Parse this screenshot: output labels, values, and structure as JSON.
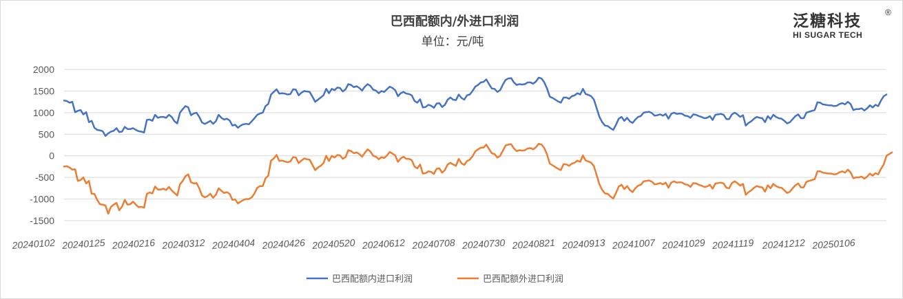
{
  "chart_data": {
    "type": "line",
    "title": "巴西配额内/外进口利润",
    "subtitle": "单位：元/吨",
    "ylim": [
      -1500,
      2000
    ],
    "yticks": [
      2000,
      1500,
      1000,
      500,
      0,
      -500,
      -1000,
      -1500
    ],
    "x_tick_labels": [
      "20240102",
      "20240125",
      "20240216",
      "20240312",
      "20240404",
      "20240426",
      "20240520",
      "20240612",
      "20240708",
      "20240730",
      "20240821",
      "20240913",
      "20241007",
      "20241029",
      "20241119",
      "20241212",
      "20250106"
    ],
    "grid": true,
    "legend_position": "bottom",
    "series": [
      {
        "name": "巴西配额内进口利润",
        "color": "#4472c4",
        "values": [
          1280,
          1270,
          1230,
          1250,
          1010,
          1040,
          1060,
          960,
          1010,
          780,
          810,
          650,
          600,
          590,
          570,
          460,
          520,
          560,
          580,
          640,
          550,
          560,
          670,
          620,
          620,
          640,
          600,
          570,
          560,
          540,
          830,
          840,
          810,
          950,
          880,
          900,
          900,
          880,
          950,
          900,
          800,
          750,
          1000,
          1080,
          1150,
          1120,
          940,
          980,
          1000,
          900,
          770,
          740,
          770,
          810,
          740,
          800,
          950,
          880,
          840,
          860,
          820,
          700,
          720,
          650,
          700,
          730,
          740,
          730,
          800,
          870,
          950,
          980,
          1000,
          1150,
          1200,
          1420,
          1480,
          1540,
          1440,
          1450,
          1440,
          1420,
          1430,
          1540,
          1530,
          1400,
          1460,
          1500,
          1490,
          1480,
          1370,
          1250,
          1300,
          1350,
          1400,
          1550,
          1450,
          1550,
          1520,
          1580,
          1570,
          1490,
          1540,
          1660,
          1640,
          1590,
          1610,
          1570,
          1510,
          1600,
          1660,
          1620,
          1530,
          1510,
          1450,
          1500,
          1480,
          1540,
          1600,
          1570,
          1520,
          1380,
          1450,
          1480,
          1440,
          1430,
          1400,
          1270,
          1230,
          1310,
          1120,
          1130,
          1180,
          1160,
          1110,
          1210,
          1220,
          1130,
          1180,
          1300,
          1350,
          1300,
          1290,
          1420,
          1340,
          1300,
          1400,
          1420,
          1500,
          1600,
          1640,
          1700,
          1710,
          1770,
          1660,
          1560,
          1550,
          1480,
          1520,
          1650,
          1760,
          1790,
          1800,
          1700,
          1640,
          1660,
          1650,
          1660,
          1700,
          1700,
          1670,
          1720,
          1810,
          1790,
          1700,
          1560,
          1370,
          1340,
          1300,
          1260,
          1230,
          1350,
          1350,
          1320,
          1380,
          1400,
          1450,
          1420,
          1550,
          1430,
          1410,
          1380,
          1300,
          1100,
          900,
          780,
          700,
          690,
          640,
          600,
          720,
          860,
          900,
          810,
          880,
          800,
          760,
          840,
          900,
          920,
          1000,
          1010,
          1020,
          990,
          930,
          940,
          960,
          930,
          970,
          860,
          970,
          1000,
          970,
          980,
          970,
          930,
          920,
          880,
          960,
          950,
          920,
          900,
          870,
          880,
          920,
          830,
          950,
          960,
          970,
          950,
          850,
          850,
          960,
          1000,
          960,
          900,
          940,
          700,
          760,
          800,
          860,
          900,
          880,
          870,
          780,
          920,
          850,
          950,
          900,
          870,
          860,
          810,
          750,
          780,
          850,
          920,
          960,
          870,
          870,
          1000,
          1020,
          1040,
          1060,
          1240,
          1230,
          1190,
          1180,
          1170,
          1170,
          1150,
          1160,
          1200,
          1220,
          1190,
          1250,
          1200,
          1060,
          1080,
          1080,
          1100,
          1050,
          1100,
          1170,
          1120,
          1180,
          1150,
          1280,
          1380,
          1420
        ]
      },
      {
        "name": "巴西配额外进口利润",
        "color": "#ed7d31",
        "values": [
          -250,
          -240,
          -270,
          -320,
          -310,
          -580,
          -560,
          -500,
          -640,
          -580,
          -880,
          -880,
          -1020,
          -1120,
          -1130,
          -1150,
          -1340,
          -1180,
          -1130,
          -1090,
          -1260,
          -1180,
          -1020,
          -1130,
          -1120,
          -1060,
          -1130,
          -1190,
          -1180,
          -1200,
          -880,
          -850,
          -870,
          -710,
          -780,
          -780,
          -760,
          -790,
          -720,
          -800,
          -860,
          -920,
          -660,
          -580,
          -470,
          -430,
          -610,
          -640,
          -630,
          -750,
          -920,
          -960,
          -930,
          -880,
          -970,
          -900,
          -750,
          -810,
          -860,
          -840,
          -880,
          -1020,
          -1010,
          -1100,
          -1060,
          -1020,
          -1000,
          -1000,
          -960,
          -870,
          -740,
          -700,
          -700,
          -520,
          -460,
          -110,
          -60,
          20,
          -120,
          -110,
          -130,
          -150,
          -130,
          -30,
          -40,
          -170,
          -110,
          -60,
          -80,
          -90,
          -210,
          -330,
          -270,
          -230,
          -170,
          0,
          -120,
          0,
          -40,
          20,
          10,
          -70,
          -30,
          130,
          110,
          60,
          80,
          40,
          -20,
          70,
          150,
          100,
          0,
          -20,
          -80,
          -30,
          -50,
          10,
          90,
          50,
          10,
          -140,
          -60,
          -20,
          -70,
          -70,
          -100,
          -250,
          -290,
          -200,
          -410,
          -400,
          -360,
          -370,
          -420,
          -300,
          -290,
          -390,
          -330,
          -200,
          -160,
          -200,
          -230,
          -70,
          -170,
          -210,
          -120,
          -90,
          -10,
          100,
          150,
          190,
          190,
          260,
          160,
          60,
          40,
          -40,
          0,
          120,
          240,
          260,
          270,
          170,
          110,
          130,
          120,
          130,
          170,
          180,
          150,
          200,
          280,
          260,
          180,
          30,
          -180,
          -220,
          -260,
          -300,
          -330,
          -190,
          -200,
          -230,
          -180,
          -160,
          -110,
          -140,
          10,
          -110,
          -130,
          -160,
          -240,
          -450,
          -660,
          -790,
          -870,
          -880,
          -940,
          -990,
          -860,
          -710,
          -670,
          -770,
          -700,
          -790,
          -840,
          -750,
          -690,
          -670,
          -590,
          -580,
          -570,
          -600,
          -660,
          -650,
          -630,
          -660,
          -620,
          -740,
          -620,
          -590,
          -620,
          -610,
          -620,
          -660,
          -670,
          -720,
          -630,
          -640,
          -670,
          -690,
          -720,
          -710,
          -670,
          -760,
          -640,
          -630,
          -620,
          -640,
          -740,
          -750,
          -630,
          -590,
          -630,
          -690,
          -650,
          -900,
          -840,
          -800,
          -740,
          -700,
          -720,
          -730,
          -830,
          -680,
          -750,
          -650,
          -700,
          -730,
          -740,
          -800,
          -860,
          -830,
          -750,
          -680,
          -640,
          -730,
          -730,
          -600,
          -580,
          -560,
          -540,
          -360,
          -360,
          -390,
          -400,
          -410,
          -410,
          -430,
          -420,
          -380,
          -360,
          -390,
          -320,
          -380,
          -520,
          -500,
          -500,
          -480,
          -530,
          -480,
          -410,
          -460,
          -400,
          -430,
          -300,
          -200,
          0,
          40,
          80
        ]
      }
    ]
  },
  "logo": {
    "cn": "泛糖科技",
    "en": "HI SUGAR TECH",
    "mark": "®"
  }
}
